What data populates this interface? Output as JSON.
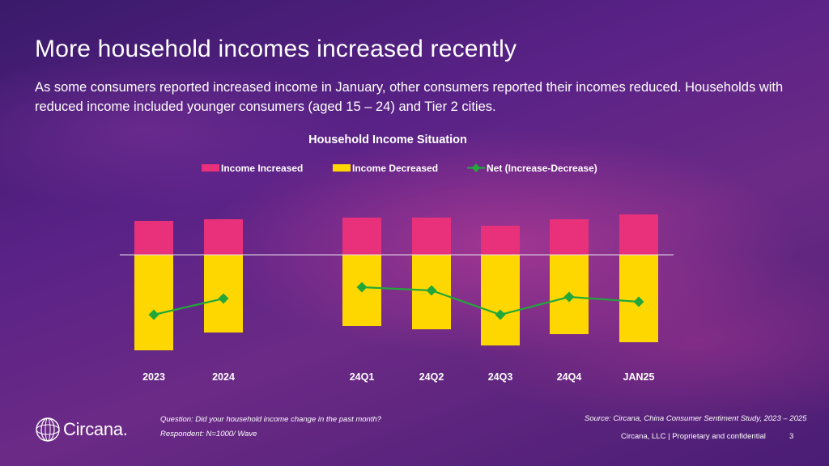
{
  "header": {
    "title": "More household incomes increased recently",
    "subtitle": "As some consumers reported increased income in January, other consumers reported their incomes reduced. Households with reduced income included younger consumers (aged 15 – 24) and Tier 2 cities."
  },
  "chart_data": {
    "type": "bar",
    "title": "Household Income Situation",
    "categories": [
      "2023",
      "2024",
      "24Q1",
      "24Q2",
      "24Q3",
      "24Q4",
      "JAN25"
    ],
    "series": [
      {
        "name": "Income Increased",
        "type": "bar",
        "color": "#e8317a",
        "values": [
          21,
          22,
          23,
          23,
          18,
          22,
          25
        ]
      },
      {
        "name": "Income Decreased",
        "type": "bar",
        "color": "#ffd700",
        "values": [
          -59,
          -48,
          -44,
          -46,
          -56,
          -49,
          -54
        ]
      },
      {
        "name": "Net (Increase-Decrease)",
        "type": "line",
        "color": "#22a83a",
        "values": [
          -37,
          -27,
          -20,
          -22,
          -37,
          -26,
          -29
        ]
      }
    ],
    "ylim": [
      -60,
      25
    ],
    "xlabel": "",
    "ylabel": "",
    "legend_position": "top"
  },
  "footer": {
    "question": "Question: Did your household income change in the past month?",
    "respondent": "Respondent: N=1000/ Wave",
    "source": "Source: Circana, China Consumer Sentiment Study, 2023 – 2025",
    "confidential": "Circana, LLC  |  Proprietary and confidential",
    "page_number": "3",
    "logo_text": "Circana."
  }
}
